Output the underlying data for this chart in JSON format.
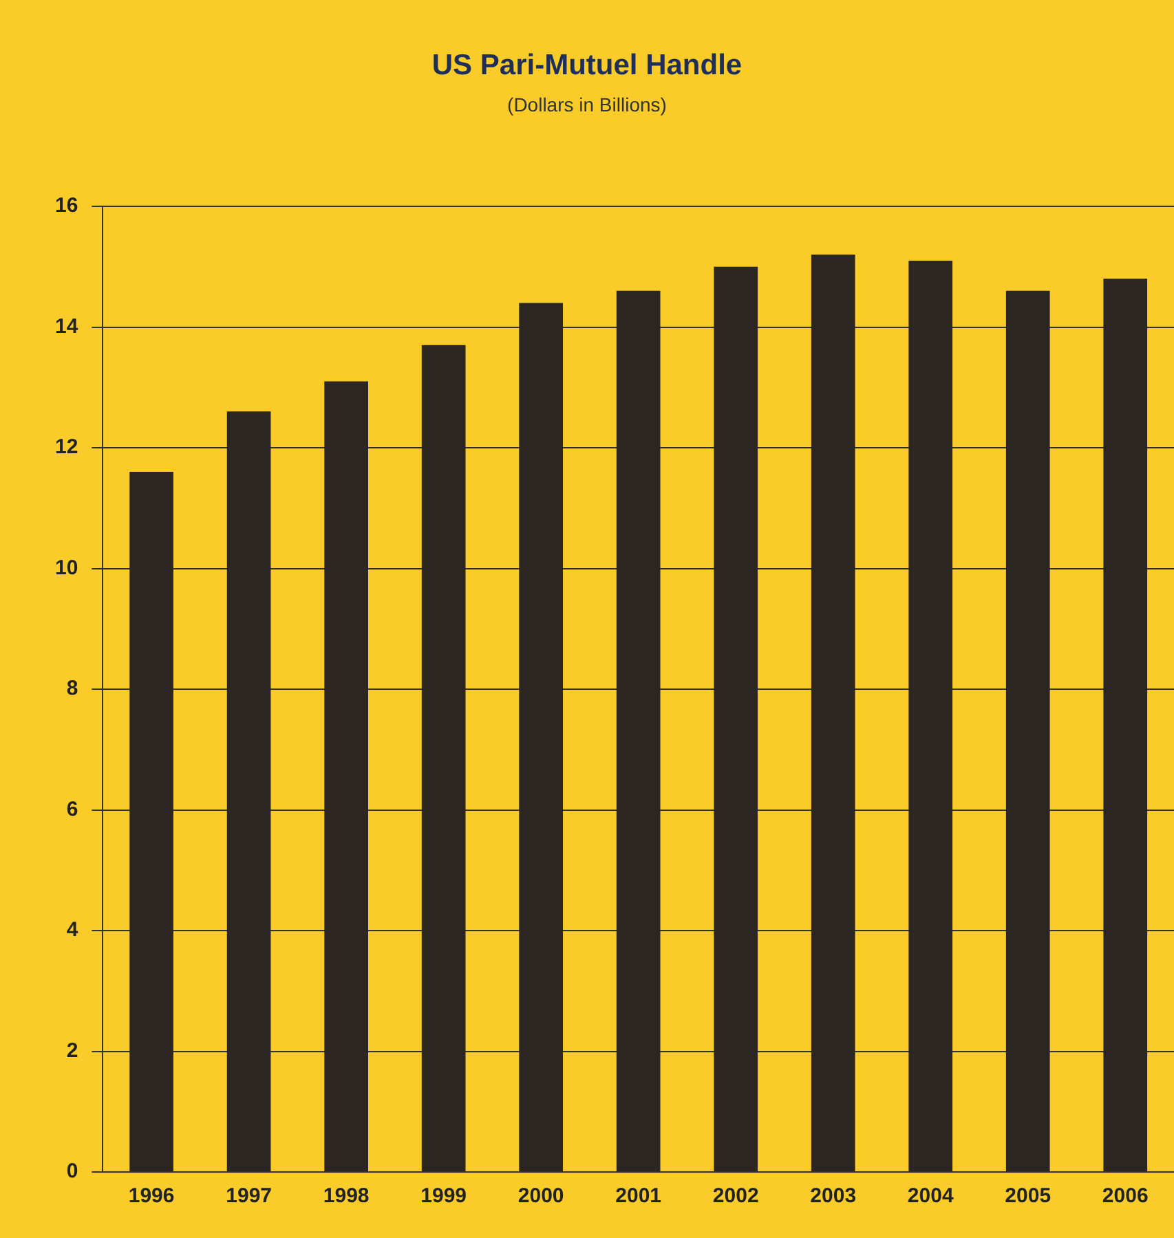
{
  "chart_data": {
    "type": "bar",
    "title": "US Pari-Mutuel Handle",
    "subtitle": "(Dollars in Billions)",
    "categories": [
      "1996",
      "1997",
      "1998",
      "1999",
      "2000",
      "2001",
      "2002",
      "2003",
      "2004",
      "2005",
      "2006"
    ],
    "values": [
      11.6,
      12.6,
      13.1,
      13.7,
      14.4,
      14.6,
      15.0,
      15.2,
      15.1,
      14.6,
      14.8
    ],
    "color": "#2b2622",
    "ylim": [
      0,
      16
    ],
    "yticks": [
      0,
      2,
      4,
      6,
      8,
      10,
      12,
      14,
      16
    ],
    "grid": "y",
    "legend": false
  }
}
